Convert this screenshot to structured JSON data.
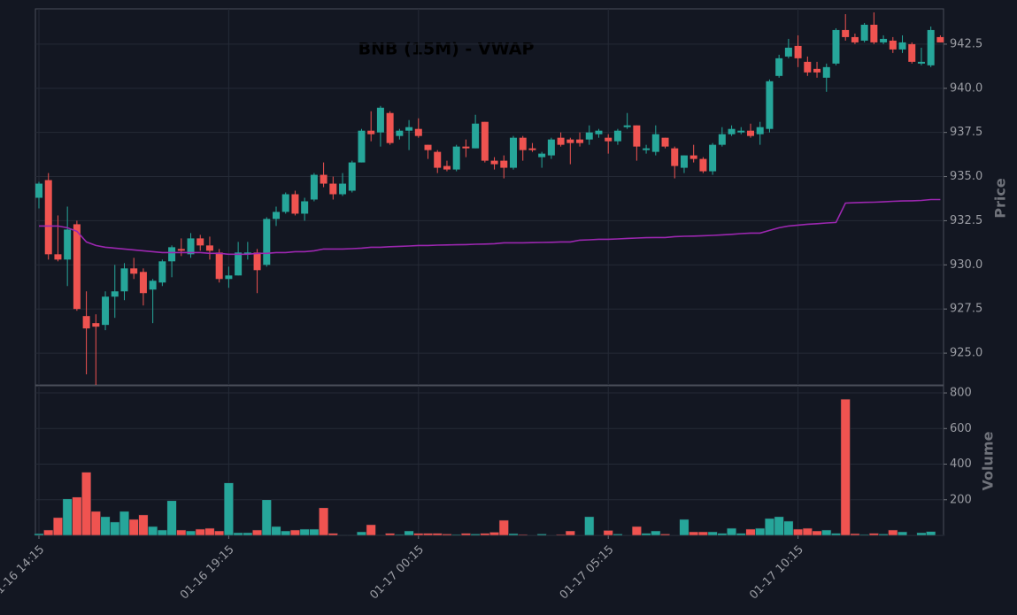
{
  "chart_data": {
    "type": "candlestick",
    "title": "BNB (15M) - VWAP",
    "ylabel": "Price",
    "categories": [
      "01-16 14:15",
      null,
      null,
      null,
      null,
      null,
      null,
      null,
      null,
      null,
      null,
      null,
      null,
      null,
      null,
      null,
      null,
      null,
      null,
      null,
      "01-16 19:15",
      null,
      null,
      null,
      null,
      null,
      null,
      null,
      null,
      null,
      null,
      null,
      null,
      null,
      null,
      null,
      null,
      null,
      null,
      null,
      "01-17 00:15",
      null,
      null,
      null,
      null,
      null,
      null,
      null,
      null,
      null,
      null,
      null,
      null,
      null,
      null,
      null,
      null,
      null,
      null,
      null,
      "01-17 05:15",
      null,
      null,
      null,
      null,
      null,
      null,
      null,
      null,
      null,
      null,
      null,
      null,
      null,
      null,
      null,
      null,
      null,
      null,
      null,
      "01-17 10:15",
      null,
      null,
      null,
      null,
      null,
      null,
      null,
      null,
      null,
      null,
      null,
      null,
      null,
      null,
      null
    ],
    "open": [
      933.8,
      934.8,
      930.6,
      930.3,
      932.3,
      927.1,
      926.7,
      926.6,
      928.2,
      928.5,
      929.8,
      929.6,
      928.6,
      929.0,
      930.2,
      930.9,
      930.6,
      931.5,
      931.1,
      930.7,
      929.2,
      929.4,
      930.6,
      930.7,
      930.0,
      932.6,
      933.0,
      934.0,
      932.9,
      933.7,
      935.1,
      934.6,
      934.0,
      934.2,
      935.8,
      937.6,
      937.5,
      938.6,
      937.3,
      937.6,
      937.7,
      936.8,
      936.4,
      935.6,
      935.4,
      936.7,
      936.6,
      938.1,
      935.9,
      935.9,
      935.5,
      937.2,
      936.6,
      936.1,
      936.2,
      937.2,
      937.1,
      937.1,
      937.1,
      937.4,
      937.2,
      937.0,
      937.8,
      937.9,
      936.5,
      936.4,
      937.2,
      936.6,
      935.5,
      936.2,
      936.0,
      935.3,
      936.8,
      937.4,
      937.5,
      937.6,
      937.4,
      937.7,
      940.7,
      941.8,
      942.4,
      941.5,
      941.1,
      940.6,
      941.4,
      943.3,
      942.9,
      942.7,
      943.6,
      942.6,
      942.7,
      942.2,
      942.5,
      941.4,
      941.3,
      942.9
    ],
    "high": [
      934.7,
      935.2,
      932.8,
      933.3,
      932.5,
      928.5,
      927.2,
      928.5,
      930.0,
      930.1,
      930.4,
      929.8,
      929.2,
      930.3,
      931.1,
      931.5,
      931.8,
      931.7,
      931.6,
      930.9,
      929.9,
      931.3,
      931.3,
      930.9,
      932.7,
      933.3,
      934.1,
      934.2,
      933.8,
      935.2,
      935.8,
      935.0,
      935.2,
      935.9,
      937.7,
      938.7,
      939.0,
      938.7,
      937.7,
      938.2,
      938.3,
      936.8,
      936.5,
      935.9,
      936.8,
      937.1,
      938.5,
      938.1,
      936.1,
      936.2,
      937.3,
      937.3,
      936.9,
      936.4,
      937.2,
      937.5,
      937.2,
      937.5,
      937.9,
      937.7,
      937.4,
      937.7,
      938.6,
      937.9,
      936.8,
      937.9,
      937.2,
      936.7,
      936.2,
      936.8,
      936.1,
      936.9,
      937.8,
      937.9,
      937.8,
      938.0,
      938.1,
      940.5,
      941.9,
      942.8,
      943.0,
      941.8,
      941.5,
      941.4,
      943.4,
      944.2,
      943.1,
      943.7,
      944.3,
      943.0,
      942.9,
      943.0,
      942.6,
      942.3,
      943.5,
      943.0
    ],
    "low": [
      933.2,
      930.3,
      930.2,
      928.8,
      927.4,
      923.8,
      923.2,
      926.3,
      927.0,
      928.0,
      929.2,
      927.7,
      926.7,
      928.8,
      929.3,
      930.5,
      930.4,
      930.8,
      930.3,
      929.0,
      928.7,
      929.4,
      930.3,
      928.4,
      929.9,
      932.2,
      932.9,
      932.8,
      932.5,
      933.6,
      934.4,
      933.7,
      933.9,
      934.1,
      935.8,
      937.0,
      936.7,
      936.8,
      937.1,
      936.5,
      937.2,
      936.0,
      935.2,
      935.3,
      935.3,
      936.1,
      936.6,
      935.8,
      935.4,
      934.9,
      935.4,
      935.9,
      936.4,
      935.5,
      936.0,
      936.7,
      935.7,
      936.7,
      936.8,
      937.2,
      936.3,
      936.8,
      937.7,
      935.9,
      936.3,
      936.2,
      936.6,
      934.9,
      935.2,
      935.8,
      935.2,
      935.1,
      936.7,
      937.3,
      937.4,
      937.2,
      936.8,
      937.5,
      940.6,
      941.7,
      941.2,
      940.7,
      940.6,
      939.8,
      941.3,
      942.7,
      942.5,
      942.6,
      942.5,
      942.5,
      942.0,
      942.0,
      941.4,
      941.3,
      941.2,
      942.6
    ],
    "close": [
      934.6,
      930.6,
      930.3,
      932.0,
      927.5,
      926.4,
      926.5,
      928.2,
      928.5,
      929.8,
      929.5,
      928.4,
      929.1,
      930.2,
      931.0,
      930.8,
      931.5,
      931.1,
      930.8,
      929.2,
      929.4,
      930.7,
      930.7,
      929.7,
      932.6,
      933.0,
      934.0,
      932.9,
      933.6,
      935.1,
      934.6,
      934.0,
      934.6,
      935.8,
      937.6,
      937.4,
      938.9,
      936.9,
      937.6,
      937.8,
      937.3,
      936.5,
      935.5,
      935.4,
      936.7,
      936.6,
      938.0,
      935.9,
      935.7,
      935.5,
      937.2,
      936.5,
      936.5,
      936.3,
      937.1,
      936.8,
      936.9,
      936.9,
      937.5,
      937.6,
      937.0,
      937.6,
      937.9,
      936.7,
      936.6,
      937.4,
      936.7,
      935.6,
      936.2,
      936.0,
      935.3,
      936.8,
      937.4,
      937.7,
      937.6,
      937.3,
      937.8,
      940.4,
      941.7,
      942.3,
      941.7,
      940.9,
      940.9,
      941.2,
      943.3,
      942.9,
      942.6,
      943.6,
      942.6,
      942.8,
      942.2,
      942.6,
      941.5,
      941.5,
      943.3,
      942.6
    ],
    "up_color": "#26a69a",
    "down_color": "#ef5350",
    "vwap": {
      "color": "#9c27b0",
      "values": [
        932.2,
        932.2,
        932.2,
        932.1,
        931.9,
        931.3,
        931.1,
        931.0,
        930.95,
        930.9,
        930.85,
        930.8,
        930.75,
        930.7,
        930.7,
        930.7,
        930.7,
        930.7,
        930.65,
        930.65,
        930.6,
        930.6,
        930.6,
        930.65,
        930.65,
        930.7,
        930.7,
        930.75,
        930.75,
        930.8,
        930.9,
        930.9,
        930.9,
        930.92,
        930.95,
        931.0,
        931.0,
        931.03,
        931.05,
        931.07,
        931.1,
        931.1,
        931.12,
        931.13,
        931.14,
        931.15,
        931.17,
        931.18,
        931.2,
        931.25,
        931.25,
        931.25,
        931.26,
        931.27,
        931.28,
        931.3,
        931.3,
        931.4,
        931.42,
        931.45,
        931.45,
        931.47,
        931.5,
        931.52,
        931.54,
        931.55,
        931.55,
        931.6,
        931.62,
        931.63,
        931.65,
        931.67,
        931.7,
        931.73,
        931.77,
        931.8,
        931.8,
        931.95,
        932.1,
        932.2,
        932.25,
        932.3,
        932.33,
        932.37,
        932.4,
        933.5,
        933.52,
        933.54,
        933.55,
        933.57,
        933.6,
        933.62,
        933.63,
        933.65,
        933.7,
        933.7
      ]
    },
    "ylim": [
      923.2,
      944.5
    ],
    "yticks": [
      {
        "value": 925,
        "label": "925.0"
      },
      927.5,
      {
        "value": 930,
        "label": "930.0"
      },
      932.5,
      {
        "value": 935,
        "label": "935.0"
      },
      937.5,
      {
        "value": 940,
        "label": "940.0"
      },
      942.5
    ],
    "grid": true,
    "volume": {
      "ylabel": "Volume",
      "ylim": [
        0,
        840
      ],
      "yticks": [
        200,
        400,
        600,
        800
      ],
      "values": [
        10,
        30,
        100,
        205,
        215,
        355,
        135,
        105,
        75,
        135,
        90,
        115,
        50,
        30,
        195,
        30,
        25,
        35,
        40,
        25,
        295,
        15,
        15,
        30,
        200,
        50,
        25,
        30,
        35,
        35,
        155,
        12,
        3,
        3,
        20,
        60,
        3,
        12,
        5,
        25,
        12,
        12,
        12,
        8,
        5,
        12,
        8,
        12,
        18,
        85,
        10,
        5,
        2,
        8,
        2,
        5,
        25,
        2,
        105,
        2,
        28,
        8,
        2,
        50,
        12,
        25,
        8,
        2,
        90,
        20,
        20,
        20,
        12,
        40,
        12,
        35,
        40,
        95,
        105,
        80,
        35,
        40,
        25,
        30,
        12,
        765,
        10,
        5,
        12,
        8,
        30,
        20,
        2,
        15,
        22,
        2
      ]
    }
  }
}
